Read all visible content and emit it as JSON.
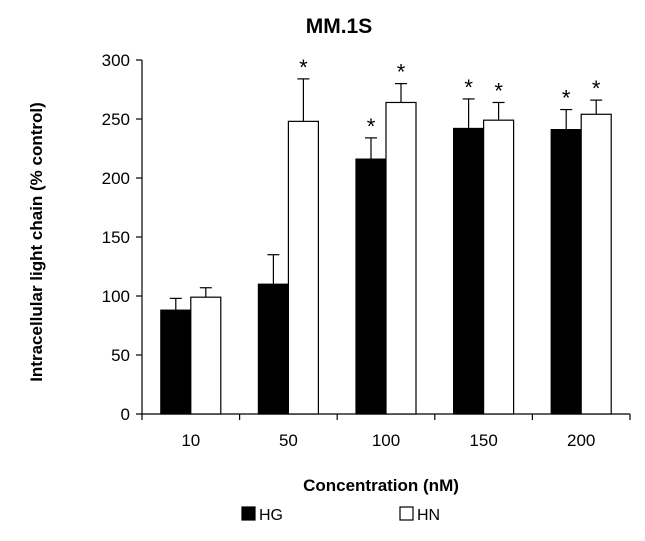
{
  "chart_data": {
    "type": "bar",
    "title": "MM.1S",
    "xlabel": "Concentration (nM)",
    "ylabel": "Intracellular light chain (% control)",
    "categories": [
      "10",
      "50",
      "100",
      "150",
      "200"
    ],
    "ylim": [
      0,
      300
    ],
    "yticks": [
      0,
      50,
      100,
      150,
      200,
      250,
      300
    ],
    "grid": false,
    "legend_position": "bottom",
    "series": [
      {
        "name": "HG",
        "color": "#000000",
        "values": [
          88,
          110,
          216,
          242,
          241
        ],
        "errors": [
          10,
          25,
          18,
          25,
          17
        ],
        "significant": [
          false,
          false,
          true,
          true,
          true
        ]
      },
      {
        "name": "HN",
        "color": "#ffffff",
        "values": [
          99,
          248,
          264,
          249,
          254
        ],
        "errors": [
          8,
          36,
          16,
          15,
          12
        ],
        "significant": [
          false,
          true,
          true,
          true,
          true
        ]
      }
    ],
    "significance_marker": "*"
  }
}
